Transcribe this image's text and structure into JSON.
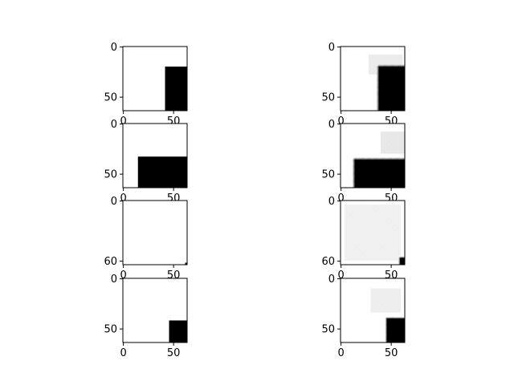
{
  "chart_data": {
    "type": "heatmap",
    "layout": "4 rows x 2 columns image grid",
    "colormap": "gray",
    "background_color": "#ffffff",
    "foreground_color": "#000000",
    "image_size": [
      64,
      64
    ],
    "panels": [
      {
        "row": 0,
        "col": 0,
        "kind": "mask",
        "xticks": [
          0,
          50
        ],
        "yticks": [
          0,
          50
        ],
        "black_regions": [
          {
            "x": [
              42,
              64
            ],
            "y": [
              20,
              64
            ]
          }
        ]
      },
      {
        "row": 0,
        "col": 1,
        "kind": "prediction",
        "xticks": [
          0,
          50
        ],
        "yticks": [
          0,
          50
        ],
        "blobs": [
          {
            "x": [
              38,
              64
            ],
            "y": [
              20,
              64
            ],
            "edge_blur": 2.5
          }
        ],
        "haze_blobs": [
          {
            "x": [
              28,
              62
            ],
            "y": [
              8,
              28
            ],
            "gray": 236
          }
        ]
      },
      {
        "row": 1,
        "col": 0,
        "kind": "mask",
        "xticks": [
          0,
          50
        ],
        "yticks": [
          0,
          50
        ],
        "black_regions": [
          {
            "x": [
              15,
              64
            ],
            "y": [
              33,
              64
            ]
          }
        ]
      },
      {
        "row": 1,
        "col": 1,
        "kind": "prediction",
        "xticks": [
          0,
          50
        ],
        "yticks": [
          0,
          50
        ],
        "blobs": [
          {
            "x": [
              14,
              64
            ],
            "y": [
              36,
              64
            ],
            "edge_blur": 2.5
          }
        ],
        "haze_blobs": [
          {
            "x": [
              40,
              64
            ],
            "y": [
              8,
              30
            ],
            "gray": 232
          }
        ]
      },
      {
        "row": 2,
        "col": 0,
        "kind": "mask",
        "xticks": [
          0,
          50
        ],
        "yticks": [
          0,
          60
        ],
        "black_regions": [
          {
            "x": [
              62,
              64
            ],
            "y": [
              62,
              64
            ]
          }
        ]
      },
      {
        "row": 2,
        "col": 1,
        "kind": "prediction",
        "xticks": [
          0,
          50
        ],
        "yticks": [
          0,
          60
        ],
        "blobs": [
          {
            "x": [
              59,
              64
            ],
            "y": [
              57,
              64
            ],
            "edge_blur": 1.5
          }
        ],
        "haze_blobs": [
          {
            "x": [
              4,
              60
            ],
            "y": [
              4,
              60
            ],
            "gray": 240
          }
        ]
      },
      {
        "row": 3,
        "col": 0,
        "kind": "mask",
        "xticks": [
          0,
          50
        ],
        "yticks": [
          0,
          50
        ],
        "black_regions": [
          {
            "x": [
              46,
              64
            ],
            "y": [
              42,
              64
            ]
          }
        ]
      },
      {
        "row": 3,
        "col": 1,
        "kind": "prediction",
        "xticks": [
          0,
          50
        ],
        "yticks": [
          0,
          50
        ],
        "blobs": [
          {
            "x": [
              46,
              64
            ],
            "y": [
              40,
              64
            ],
            "edge_blur": 2.0
          }
        ],
        "haze_blobs": [
          {
            "x": [
              30,
              60
            ],
            "y": [
              10,
              34
            ],
            "gray": 238
          }
        ]
      }
    ]
  }
}
